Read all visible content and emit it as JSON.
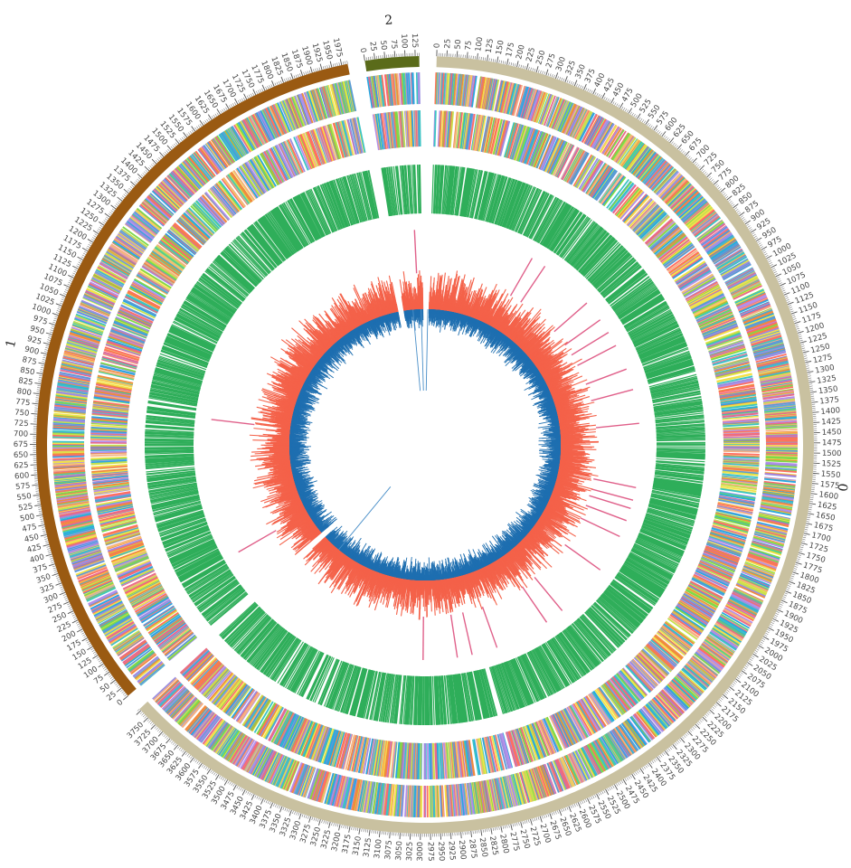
{
  "chart_data": {
    "type": "circos",
    "title": "",
    "unit": "",
    "chromosomes": [
      {
        "name": "0",
        "size": 3780,
        "band_color": "#c9c1a0",
        "tick_step": 25,
        "labeled_ticks": [
          0,
          25,
          50,
          75,
          100,
          125,
          150,
          175,
          200,
          225,
          250,
          275,
          300,
          325,
          350,
          375,
          400,
          425,
          450,
          475,
          500,
          525,
          550,
          575,
          600,
          625,
          650,
          675,
          700,
          725,
          750,
          775,
          800,
          825,
          850,
          875,
          900,
          925,
          950,
          975,
          1000,
          1025,
          1050,
          1075,
          1100,
          1125,
          1150,
          1175,
          1200,
          1225,
          1250,
          1275,
          1300,
          1325,
          1350,
          1375,
          1400,
          1425,
          1450,
          1475,
          1500,
          1525,
          1550,
          1575,
          1600,
          1625,
          1650,
          1675,
          1700,
          1725,
          1750,
          1775,
          1800,
          1825,
          1850,
          1875,
          1900,
          1925,
          1950,
          1975,
          2000,
          2025,
          2050,
          2075,
          2100,
          2125,
          2150,
          2175,
          2200,
          2225,
          2250,
          2275,
          2300,
          2325,
          2350,
          2375,
          2400,
          2425,
          2450,
          2475,
          2500,
          2525,
          2550,
          2575,
          2600,
          2625,
          2650,
          2675,
          2700,
          2725,
          2750,
          2775,
          2800,
          2825,
          2850,
          2875,
          2900,
          2925,
          2950,
          2975,
          3000,
          3025,
          3050,
          3075,
          3100,
          3125,
          3150,
          3175,
          3200,
          3225,
          3250,
          3275,
          3300,
          3325,
          3350,
          3375,
          3400,
          3425,
          3450,
          3475,
          3500,
          3525,
          3550,
          3575,
          3600,
          3625,
          3650,
          3675,
          3700,
          3725,
          3750
        ]
      },
      {
        "name": "1",
        "size": 1990,
        "band_color": "#9a5a12",
        "tick_step": 25,
        "labeled_ticks": [
          0,
          25,
          50,
          75,
          100,
          125,
          150,
          175,
          200,
          225,
          250,
          275,
          300,
          325,
          350,
          375,
          400,
          425,
          450,
          475,
          500,
          525,
          550,
          575,
          600,
          625,
          650,
          675,
          700,
          725,
          750,
          775,
          800,
          825,
          850,
          875,
          900,
          925,
          950,
          975,
          1000,
          1025,
          1050,
          1075,
          1100,
          1125,
          1150,
          1175,
          1200,
          1225,
          1250,
          1275,
          1300,
          1325,
          1350,
          1375,
          1400,
          1425,
          1450,
          1475,
          1500,
          1525,
          1550,
          1575,
          1600,
          1625,
          1650,
          1675,
          1700,
          1725,
          1750,
          1775,
          1800,
          1825,
          1850,
          1875,
          1900,
          1925,
          1950,
          1975
        ]
      },
      {
        "name": "2",
        "size": 135,
        "band_color": "#5a6b1a",
        "tick_step": 25,
        "labeled_ticks": [
          0,
          25,
          50,
          75,
          100,
          125
        ]
      }
    ],
    "tracks": [
      {
        "id": "cog-forward",
        "kind": "tiles",
        "colors": [
          "#9b8ee0",
          "#29a8e0",
          "#f08a3e",
          "#7fd84a",
          "#f2e14a",
          "#e86a8a",
          "#3cc4c4",
          "#b48fe8",
          "#5b9bd5",
          "#f4b183",
          "#c6e04e",
          "#ff6f61"
        ]
      },
      {
        "id": "cog-reverse",
        "kind": "tiles",
        "colors": [
          "#9b8ee0",
          "#29a8e0",
          "#f08a3e",
          "#7fd84a",
          "#f2e14a",
          "#e86a8a",
          "#3cc4c4",
          "#b48fe8",
          "#5b9bd5",
          "#f4b183",
          "#c6e04e",
          "#ff6f61"
        ]
      },
      {
        "id": "rna",
        "kind": "lines",
        "color": "#2fae5a"
      },
      {
        "id": "trna",
        "kind": "lines",
        "color": "#e0608a"
      },
      {
        "id": "gc-content",
        "kind": "histogram",
        "color": "#f4624a"
      },
      {
        "id": "gc-skew",
        "kind": "histogram",
        "color": "#1f6fb0"
      }
    ],
    "legend": "none",
    "grid": false
  }
}
